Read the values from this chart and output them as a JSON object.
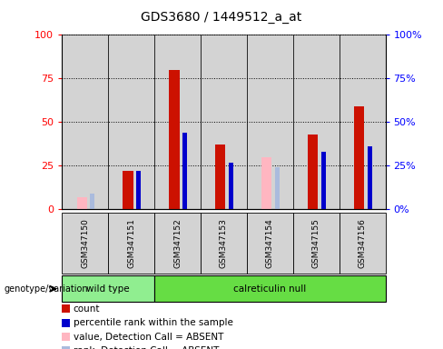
{
  "title": "GDS3680 / 1449512_a_at",
  "samples": [
    "GSM347150",
    "GSM347151",
    "GSM347152",
    "GSM347153",
    "GSM347154",
    "GSM347155",
    "GSM347156"
  ],
  "count_values": [
    0,
    22,
    80,
    37,
    0,
    43,
    59
  ],
  "percentile_rank": [
    0,
    22,
    44,
    27,
    24,
    33,
    36
  ],
  "absent_value": [
    7,
    0,
    0,
    0,
    30,
    0,
    0
  ],
  "absent_rank": [
    9,
    0,
    0,
    0,
    24,
    0,
    0
  ],
  "is_absent": [
    true,
    false,
    false,
    false,
    true,
    false,
    false
  ],
  "wild_type_count": 2,
  "bar_bg_color": "#D3D3D3",
  "color_count": "#CC1100",
  "color_rank": "#0000CC",
  "color_absent_value": "#FFB6C1",
  "color_absent_rank": "#AABBDD",
  "ylim": [
    0,
    100
  ],
  "yticks": [
    0,
    25,
    50,
    75,
    100
  ],
  "legend_items": [
    {
      "label": "count",
      "color": "#CC1100"
    },
    {
      "label": "percentile rank within the sample",
      "color": "#0000CC"
    },
    {
      "label": "value, Detection Call = ABSENT",
      "color": "#FFB6C1"
    },
    {
      "label": "rank, Detection Call = ABSENT",
      "color": "#AABBDD"
    }
  ]
}
